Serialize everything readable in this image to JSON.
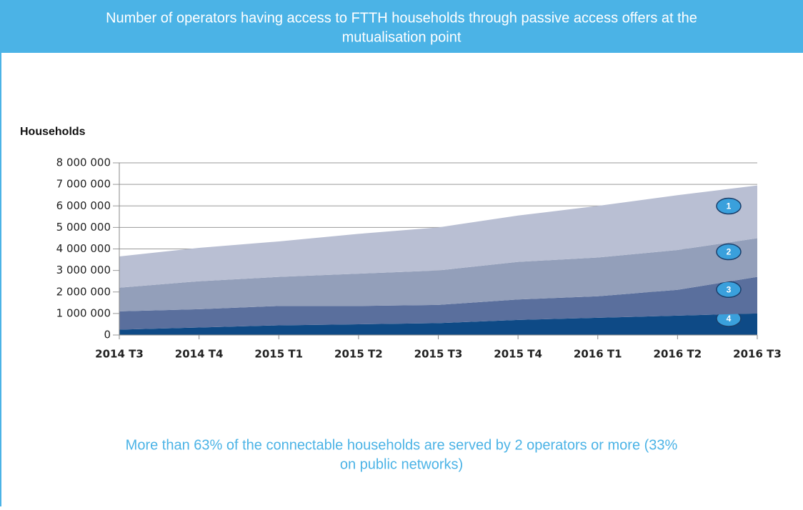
{
  "title": [
    "Number of operators having access to FTTH households through passive access offers at the",
    "mutualisation point"
  ],
  "chart_data": {
    "type": "stacked_area",
    "y_label": "Households",
    "categories": [
      "2014 T3",
      "2014 T4",
      "2015 T1",
      "2015 T2",
      "2015 T3",
      "2015 T4",
      "2016 T1",
      "2016 T2",
      "2016 T3"
    ],
    "series": [
      {
        "name": "4",
        "color": "#0e4a86",
        "values": [
          250000,
          350000,
          450000,
          500000,
          550000,
          700000,
          800000,
          900000,
          1000000
        ]
      },
      {
        "name": "3",
        "color": "#5a6f9d",
        "values": [
          850000,
          850000,
          900000,
          850000,
          850000,
          950000,
          1000000,
          1200000,
          1700000
        ]
      },
      {
        "name": "2",
        "color": "#939fba",
        "values": [
          1100000,
          1300000,
          1350000,
          1500000,
          1600000,
          1750000,
          1800000,
          1850000,
          1800000
        ]
      },
      {
        "name": "1",
        "color": "#b9bfd3",
        "values": [
          1450000,
          1550000,
          1650000,
          1850000,
          2000000,
          2150000,
          2400000,
          2550000,
          2450000
        ]
      }
    ],
    "ylim": [
      0,
      8000000
    ],
    "yticks": [
      {
        "value": 0,
        "label": "0"
      },
      {
        "value": 1000000,
        "label": "1 000 000"
      },
      {
        "value": 2000000,
        "label": "2 000 000"
      },
      {
        "value": 3000000,
        "label": "3 000 000"
      },
      {
        "value": 4000000,
        "label": "4 000 000"
      },
      {
        "value": 5000000,
        "label": "5 000 000"
      },
      {
        "value": 6000000,
        "label": "6 000 000"
      },
      {
        "value": 7000000,
        "label": "7 000 000"
      },
      {
        "value": 8000000,
        "label": "8 000 000"
      }
    ],
    "grid": true
  },
  "footer": [
    "More than 63% of the connectable households are served by 2 operators or more (33%",
    "on public networks)"
  ]
}
